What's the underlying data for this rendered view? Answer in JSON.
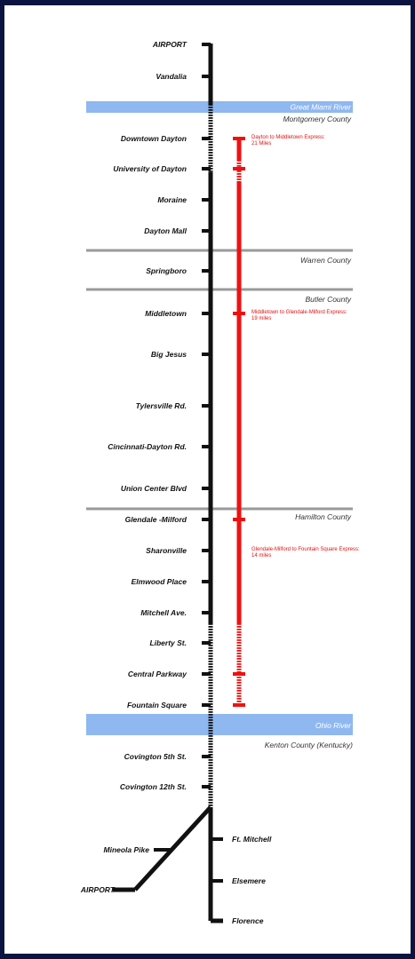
{
  "colors": {
    "line": "#111111",
    "express": "#ee1111",
    "river": "#8fb8f0",
    "county_boundary": "#9a9a9a",
    "frame": "#0b1440"
  },
  "main_line": {
    "stations": [
      "AIRPORT",
      "Vandalia",
      "Downtown Dayton",
      "University of Dayton",
      "Moraine",
      "Dayton Mall",
      "Springboro",
      "Middletown",
      "Big Jesus",
      "Tylersville Rd.",
      "Cincinnati-Dayton Rd.",
      "Union Center Blvd",
      "Glendale -Milford",
      "Sharonville",
      "Elmwood Place",
      "Mitchell Ave.",
      "Liberty St.",
      "Central Parkway",
      "Fountain Square",
      "Covington 5th St.",
      "Covington 12th St."
    ]
  },
  "branch_west": {
    "stations": [
      "Mineola Pike",
      "AIRPORT"
    ]
  },
  "branch_east": {
    "stations": [
      "Ft. Mitchell",
      "Elsemere",
      "Florence"
    ]
  },
  "rivers": [
    "Great Miami River",
    "Ohio River"
  ],
  "counties": [
    "Montgomery County",
    "Warren County",
    "Butler County",
    "Hamilton County",
    "Kenton County (Kentucky)"
  ],
  "express_routes": [
    {
      "line1": "Dayton to Middletown Express:",
      "line2": "21 Miles"
    },
    {
      "line1": "Middletown to Glendale-Milford Express:",
      "line2": "19 miles"
    },
    {
      "line1": "Glendale-Milford to Fountain Square Express:",
      "line2": "14 miles"
    }
  ]
}
